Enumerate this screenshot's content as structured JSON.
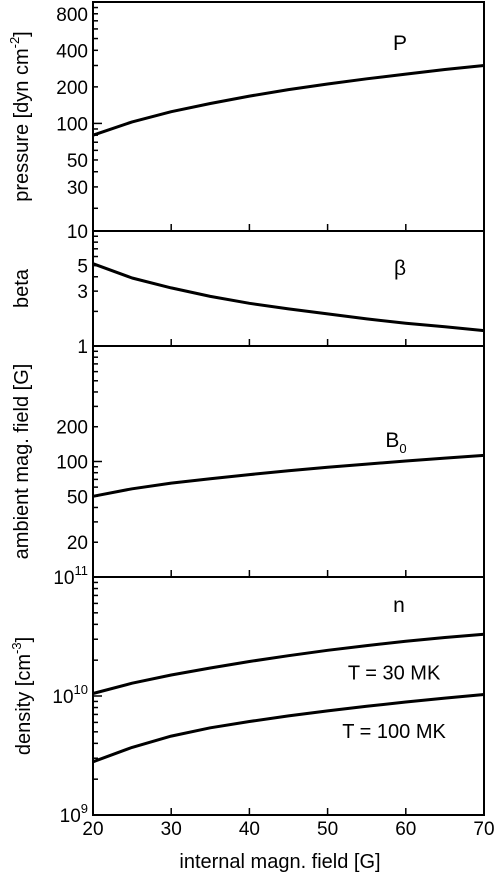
{
  "chart_data": {
    "type": "line",
    "xlabel": "internal magn. field [G]",
    "x_ticks": [
      20,
      30,
      40,
      50,
      60,
      70
    ],
    "xlim": [
      20,
      70
    ],
    "panels": [
      {
        "id": "pressure",
        "ylabel": "pressure [dyn cm",
        "ylabel_sup": "-2",
        "ylabel_close": "]",
        "yscale": "log",
        "ylim": [
          13,
          1000
        ],
        "y_ticks": [
          30,
          50,
          100,
          200,
          400,
          800
        ],
        "y_tick_labels": [
          "30",
          "50",
          "100",
          "200",
          "400",
          "800"
        ],
        "label": "P",
        "series": [
          {
            "x": [
              20,
              25,
              30,
              35,
              40,
              45,
              50,
              55,
              60,
              65,
              70
            ],
            "y": [
              80,
              103,
              125,
              146,
              168,
              190,
              211,
              233,
              255,
              278,
              300
            ]
          }
        ]
      },
      {
        "id": "beta",
        "ylabel": "beta",
        "yscale": "log",
        "ylim": [
          1,
          10
        ],
        "y_ticks": [
          1,
          3,
          5,
          10
        ],
        "y_tick_labels": [
          "1",
          "3",
          "5",
          "10"
        ],
        "label": "β",
        "series": [
          {
            "x": [
              20,
              25,
              30,
              35,
              40,
              45,
              50,
              55,
              60,
              65,
              70
            ],
            "y": [
              5.2,
              3.9,
              3.2,
              2.7,
              2.35,
              2.1,
              1.9,
              1.72,
              1.58,
              1.47,
              1.36
            ]
          }
        ]
      },
      {
        "id": "ambient",
        "ylabel": "ambient mag. field [G]",
        "yscale": "log",
        "ylim": [
          10,
          1000
        ],
        "y_ticks": [
          20,
          50,
          100,
          200
        ],
        "y_tick_labels": [
          "20",
          "50",
          "100",
          "200"
        ],
        "label": "B",
        "label_sub": "0",
        "series": [
          {
            "x": [
              20,
              25,
              30,
              35,
              40,
              45,
              50,
              55,
              60,
              65,
              70
            ],
            "y": [
              50,
              58,
              65,
              71,
              77,
              83,
              89,
              95,
              101,
              107,
              113
            ]
          }
        ]
      },
      {
        "id": "density",
        "ylabel": "density [cm",
        "ylabel_sup": "-3",
        "ylabel_close": "]",
        "yscale": "log",
        "ylim": [
          1000000000.0,
          100000000000.0
        ],
        "y_ticks": [
          1000000000.0,
          10000000000.0,
          100000000000.0
        ],
        "y_tick_labels": [
          {
            "base": "10",
            "exp": "9"
          },
          {
            "base": "10",
            "exp": "10"
          },
          {
            "base": "10",
            "exp": "11"
          }
        ],
        "label": "n",
        "series": [
          {
            "name": "T =  30 MK",
            "x": [
              20,
              25,
              30,
              35,
              40,
              45,
              50,
              55,
              60,
              65,
              70
            ],
            "y": [
              10500000000.0,
              12800000000.0,
              15000000000.0,
              17200000000.0,
              19500000000.0,
              21800000000.0,
              24200000000.0,
              26500000000.0,
              28800000000.0,
              31000000000.0,
              33000000000.0
            ],
            "annotation": {
              "text": "T =  30 MK",
              "x": 58.5,
              "y": 15800000000.0
            }
          },
          {
            "name": "T = 100 MK",
            "x": [
              20,
              25,
              30,
              35,
              40,
              45,
              50,
              55,
              60,
              65,
              70
            ],
            "y": [
              2800000000.0,
              3700000000.0,
              4600000000.0,
              5400000000.0,
              6100000000.0,
              6800000000.0,
              7500000000.0,
              8200000000.0,
              8900000000.0,
              9600000000.0,
              10300000000.0
            ],
            "annotation": {
              "text": "T = 100 MK",
              "x": 58.5,
              "y": 5100000000.0
            }
          }
        ]
      }
    ],
    "grid": false,
    "legend": "none"
  }
}
